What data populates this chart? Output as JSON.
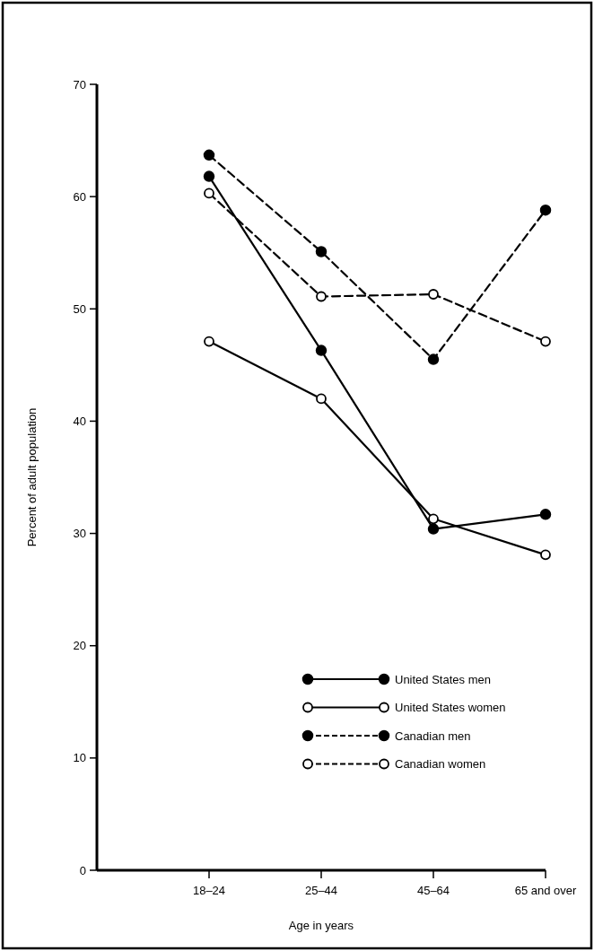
{
  "chart_data": {
    "type": "line",
    "xlabel": "Age in years",
    "ylabel": "Percent of adult population",
    "categories": [
      "18–24",
      "25–44",
      "45–64",
      "65 and over"
    ],
    "ylim": [
      0,
      70
    ],
    "yticks": [
      0,
      10,
      20,
      30,
      40,
      50,
      60,
      70
    ],
    "grid": false,
    "legend": "bottom right",
    "series": [
      {
        "name": "United States men",
        "color": "#000000",
        "line_style": "solid",
        "marker": "circle",
        "values": [
          61.8,
          46.3,
          30.4,
          31.7
        ]
      },
      {
        "name": "United States women",
        "color": "#000000",
        "line_style": "solid",
        "marker": "circle-open",
        "values": [
          47.1,
          42.0,
          31.3,
          28.1
        ]
      },
      {
        "name": "Canadian men",
        "color": "#000000",
        "line_style": "dashed",
        "marker": "circle",
        "values": [
          63.7,
          55.1,
          45.5,
          58.8
        ]
      },
      {
        "name": "Canadian women",
        "color": "#000000",
        "line_style": "dashed",
        "marker": "circle-open",
        "values": [
          60.3,
          51.1,
          51.3,
          47.1
        ]
      }
    ]
  }
}
